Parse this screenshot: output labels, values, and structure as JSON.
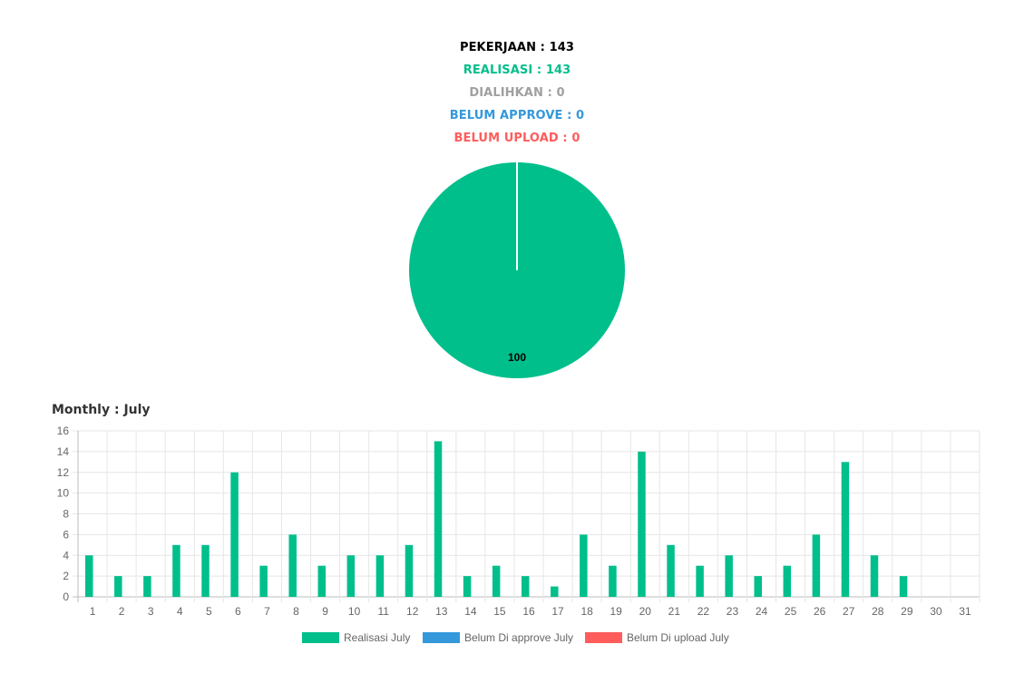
{
  "summary": {
    "pekerjaan": "PEKERJAAN : 143",
    "realisasi": "REALISASI : 143",
    "dialihkan": "DIALIHKAN : 0",
    "belum_approve": "BELUM APPROVE : 0",
    "belum_upload": "BELUM UPLOAD : 0"
  },
  "colors": {
    "pekerjaan": "#000000",
    "realisasi": "#00bf8b",
    "dialihkan": "#a0a0a0",
    "belum_approve": "#3498db",
    "belum_upload": "#ff5c5c",
    "grid": "#e6e6e6",
    "axis_text": "#666666"
  },
  "monthly_title": "Monthly : July",
  "chart_data": [
    {
      "type": "pie",
      "slices": [
        {
          "label": "Realisasi",
          "value": 100,
          "color": "#00bf8b"
        }
      ],
      "data_labels": [
        "100"
      ]
    },
    {
      "type": "bar",
      "title": "Monthly : July",
      "categories": [
        "1",
        "2",
        "3",
        "4",
        "5",
        "6",
        "7",
        "8",
        "9",
        "10",
        "11",
        "12",
        "13",
        "14",
        "15",
        "16",
        "17",
        "18",
        "19",
        "20",
        "21",
        "22",
        "23",
        "24",
        "25",
        "26",
        "27",
        "28",
        "29",
        "30",
        "31"
      ],
      "series": [
        {
          "name": "Realisasi July",
          "color": "#00bf8b",
          "values": [
            4,
            2,
            2,
            5,
            5,
            12,
            3,
            6,
            3,
            4,
            4,
            5,
            15,
            2,
            3,
            2,
            1,
            6,
            3,
            14,
            5,
            3,
            4,
            2,
            3,
            6,
            13,
            4,
            2,
            0,
            0
          ]
        },
        {
          "name": "Belum Di approve July",
          "color": "#3498db",
          "values": [
            0,
            0,
            0,
            0,
            0,
            0,
            0,
            0,
            0,
            0,
            0,
            0,
            0,
            0,
            0,
            0,
            0,
            0,
            0,
            0,
            0,
            0,
            0,
            0,
            0,
            0,
            0,
            0,
            0,
            0,
            0
          ]
        },
        {
          "name": "Belum Di upload July",
          "color": "#ff5c5c",
          "values": [
            0,
            0,
            0,
            0,
            0,
            0,
            0,
            0,
            0,
            0,
            0,
            0,
            0,
            0,
            0,
            0,
            0,
            0,
            0,
            0,
            0,
            0,
            0,
            0,
            0,
            0,
            0,
            0,
            0,
            0,
            0
          ]
        }
      ],
      "yticks": [
        "0",
        "2",
        "4",
        "6",
        "8",
        "10",
        "12",
        "14",
        "16"
      ],
      "ylim": [
        0,
        16
      ],
      "grid": true,
      "legend_position": "bottom"
    }
  ]
}
